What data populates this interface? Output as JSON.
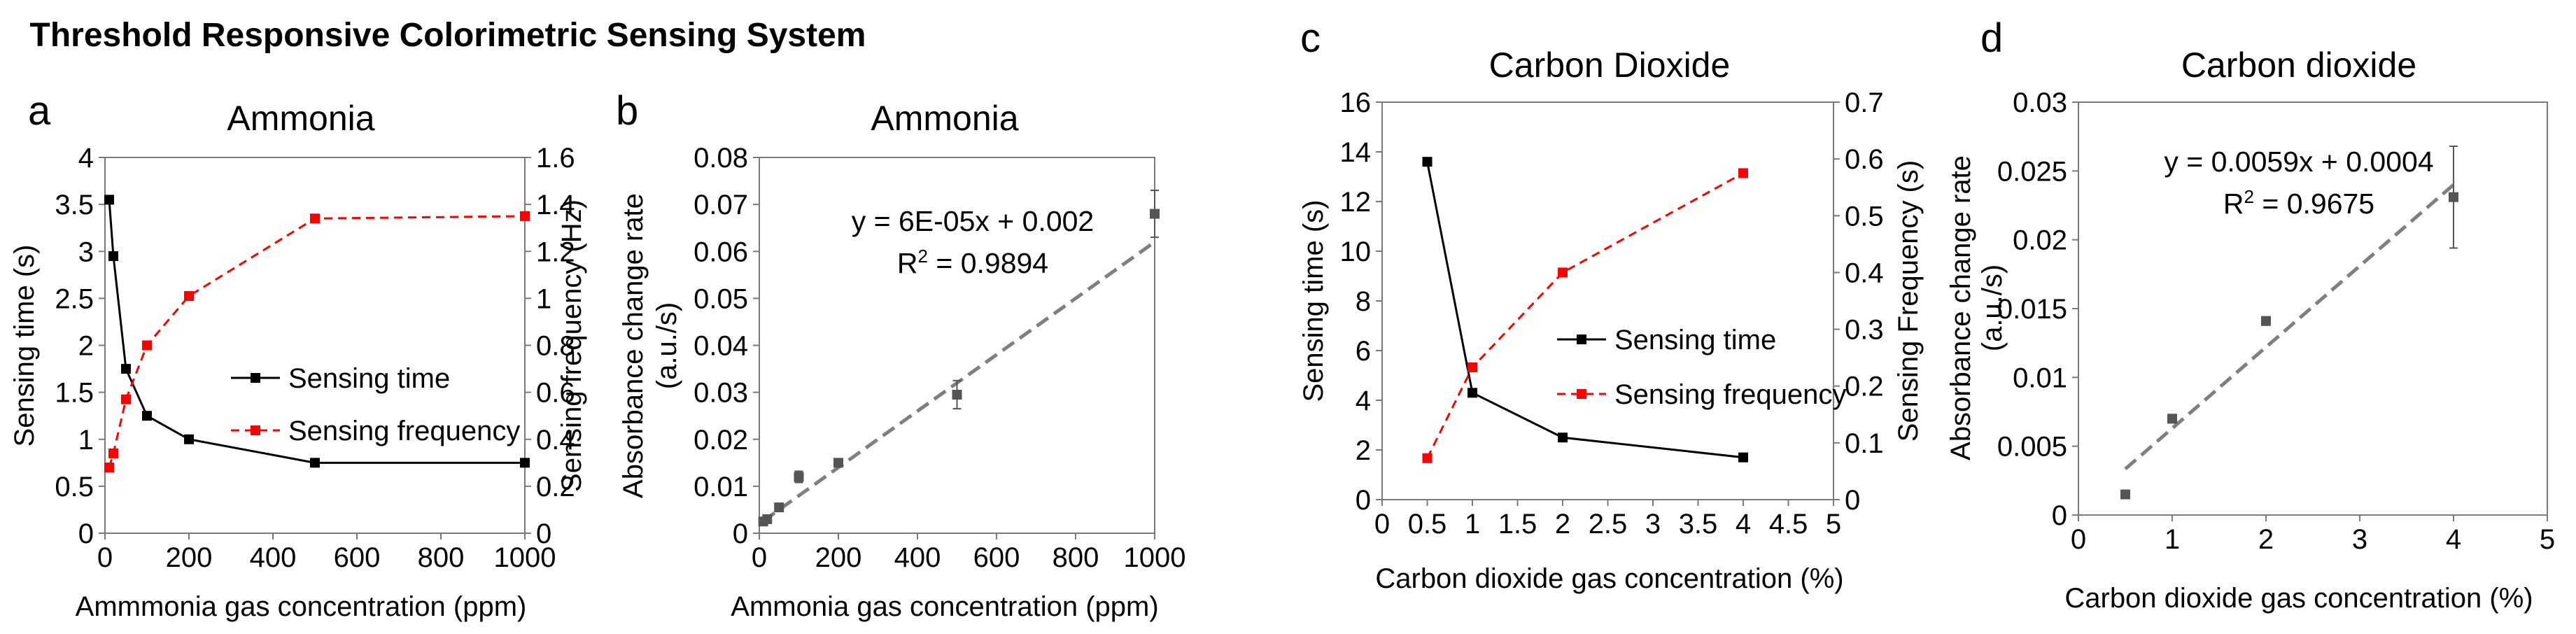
{
  "figure_title": "Threshold Responsive Colorimetric Sensing System",
  "colors": {
    "sensing_time": "#000000",
    "sensing_frequency": "#ff0000",
    "fit": "#7f7f7f",
    "points": "#555555"
  },
  "chart_data": [
    {
      "panel": "a",
      "type": "line",
      "title": "Ammonia",
      "xlabel": "Ammmonia gas concentration (ppm)",
      "ylabel": "Sensing time (s)",
      "y2label": "Sensing frequency (Hz)",
      "xlim": [
        0,
        1000
      ],
      "ylim": [
        0,
        4
      ],
      "y2lim": [
        0,
        1.6
      ],
      "xticks": [
        "0",
        "200",
        "400",
        "600",
        "800",
        "1000"
      ],
      "yticks": [
        "0",
        "0.5",
        "1",
        "1.5",
        "2",
        "2.5",
        "3",
        "3.5",
        "4"
      ],
      "y2ticks": [
        "0",
        "0.2",
        "0.4",
        "0.6",
        "0.8",
        "1",
        "1.2",
        "1.4",
        "1.6"
      ],
      "legend_position": "middle-right",
      "series": [
        {
          "name": "Sensing time",
          "axis": "left",
          "style": "solid",
          "x": [
            10,
            20,
            50,
            100,
            200,
            500,
            1000
          ],
          "y": [
            3.55,
            2.95,
            1.75,
            1.25,
            1.0,
            0.75,
            0.75
          ]
        },
        {
          "name": "Sensing  frequency",
          "axis": "right",
          "style": "dashed",
          "x": [
            10,
            20,
            50,
            100,
            200,
            500,
            1000
          ],
          "y": [
            0.28,
            0.34,
            0.57,
            0.8,
            1.01,
            1.34,
            1.35
          ]
        }
      ]
    },
    {
      "panel": "b",
      "type": "scatter",
      "title": "Ammonia",
      "xlabel": "Ammonia gas concentration (ppm)",
      "ylabel": "Absorbance change rate",
      "ylabel2": "(a.u./s)",
      "xlim": [
        0,
        1000
      ],
      "ylim": [
        0,
        0.08
      ],
      "xticks": [
        "0",
        "200",
        "400",
        "600",
        "800",
        "1000"
      ],
      "yticks": [
        "0",
        "0.01",
        "0.02",
        "0.03",
        "0.04",
        "0.05",
        "0.06",
        "0.07",
        "0.08"
      ],
      "equation": "y = 6E-05x + 0.002",
      "r2_label": "R",
      "r2_value": " = 0.9894",
      "points": [
        {
          "x": 10,
          "y": 0.0025,
          "err": 0.0005
        },
        {
          "x": 20,
          "y": 0.003,
          "err": 0.0005
        },
        {
          "x": 50,
          "y": 0.0055,
          "err": 0.0006
        },
        {
          "x": 100,
          "y": 0.012,
          "err": 0.0012
        },
        {
          "x": 200,
          "y": 0.015,
          "err": 0.0008
        },
        {
          "x": 500,
          "y": 0.0295,
          "err": 0.003
        },
        {
          "x": 1000,
          "y": 0.068,
          "err": 0.005
        }
      ],
      "fit": {
        "slope": 6e-05,
        "intercept": 0.002,
        "x_range": [
          10,
          1000
        ]
      }
    },
    {
      "panel": "c",
      "type": "line",
      "title": "Carbon Dioxide",
      "xlabel": "Carbon dioxide gas concentration (%)",
      "ylabel": "Sensing time (s)",
      "y2label": "Sensing Frequency (s)",
      "xlim": [
        0,
        5
      ],
      "ylim": [
        0,
        16
      ],
      "y2lim": [
        0,
        0.7
      ],
      "xticks": [
        "0",
        "0.5",
        "1",
        "1.5",
        "2",
        "2.5",
        "3",
        "3.5",
        "4",
        "4.5",
        "5"
      ],
      "yticks": [
        "0",
        "2",
        "4",
        "6",
        "8",
        "10",
        "12",
        "14",
        "16"
      ],
      "y2ticks": [
        "0",
        "0.1",
        "0.2",
        "0.3",
        "0.4",
        "0.5",
        "0.6",
        "0.7"
      ],
      "legend_position": "middle-right",
      "series": [
        {
          "name": "Sensing time",
          "axis": "left",
          "style": "solid",
          "x": [
            0.5,
            1,
            2,
            4
          ],
          "y": [
            13.6,
            4.3,
            2.5,
            1.7
          ]
        },
        {
          "name": "Sensing frequency",
          "axis": "right",
          "style": "dashed",
          "x": [
            0.5,
            1,
            2,
            4
          ],
          "y": [
            0.073,
            0.233,
            0.4,
            0.575
          ]
        }
      ]
    },
    {
      "panel": "d",
      "type": "scatter",
      "title": "Carbon dioxide",
      "xlabel": "Carbon dioxide gas concentration (%)",
      "ylabel": "Absorbance change rate",
      "ylabel2": "(a.u./s)",
      "xlim": [
        0,
        5
      ],
      "ylim": [
        0,
        0.03
      ],
      "xticks": [
        "0",
        "1",
        "2",
        "3",
        "4",
        "5"
      ],
      "yticks": [
        "0",
        "0.005",
        "0.01",
        "0.015",
        "0.02",
        "0.025",
        "0.03"
      ],
      "equation": "y = 0.0059x + 0.0004",
      "r2_label": "R",
      "r2_value": " = 0.9675",
      "points": [
        {
          "x": 0.5,
          "y": 0.0015,
          "err": 0.0002
        },
        {
          "x": 1,
          "y": 0.007,
          "err": 0.0003
        },
        {
          "x": 2,
          "y": 0.0141,
          "err": 0.0003
        },
        {
          "x": 4,
          "y": 0.0231,
          "err": 0.0037
        }
      ],
      "fit": {
        "slope": 0.0059,
        "intercept": 0.0004,
        "x_range": [
          0.5,
          4
        ]
      }
    }
  ]
}
